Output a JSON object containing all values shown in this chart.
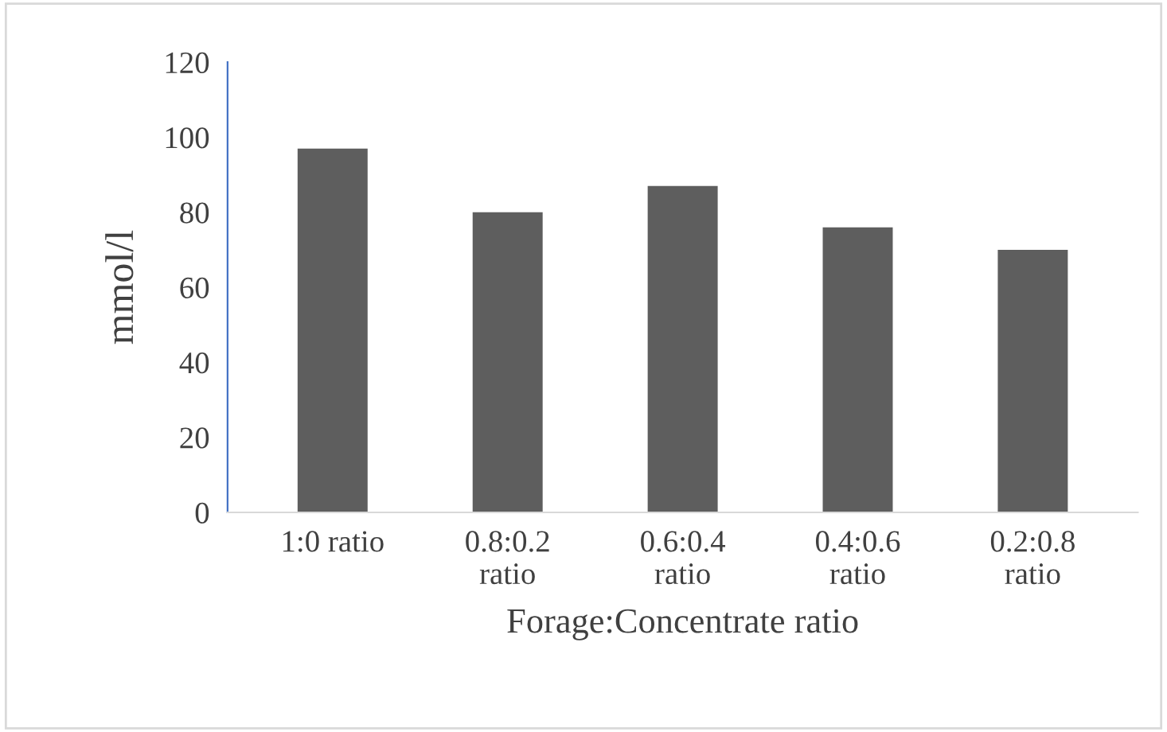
{
  "chart_data": {
    "type": "bar",
    "xlabel": "Forage:Concentrate ratio",
    "ylabel": "mmol/l",
    "categories": [
      "1:0 ratio",
      "0.8:0.2 ratio",
      "0.6:0.4 ratio",
      "0.4:0.6 ratio",
      "0.2:0.8 ratio"
    ],
    "values": [
      97,
      80,
      87,
      76,
      70
    ],
    "color": "#5e5e5e",
    "ylim": [
      0,
      120
    ],
    "yticks": [
      0,
      20,
      40,
      60,
      80,
      100,
      120
    ],
    "grid": false
  }
}
